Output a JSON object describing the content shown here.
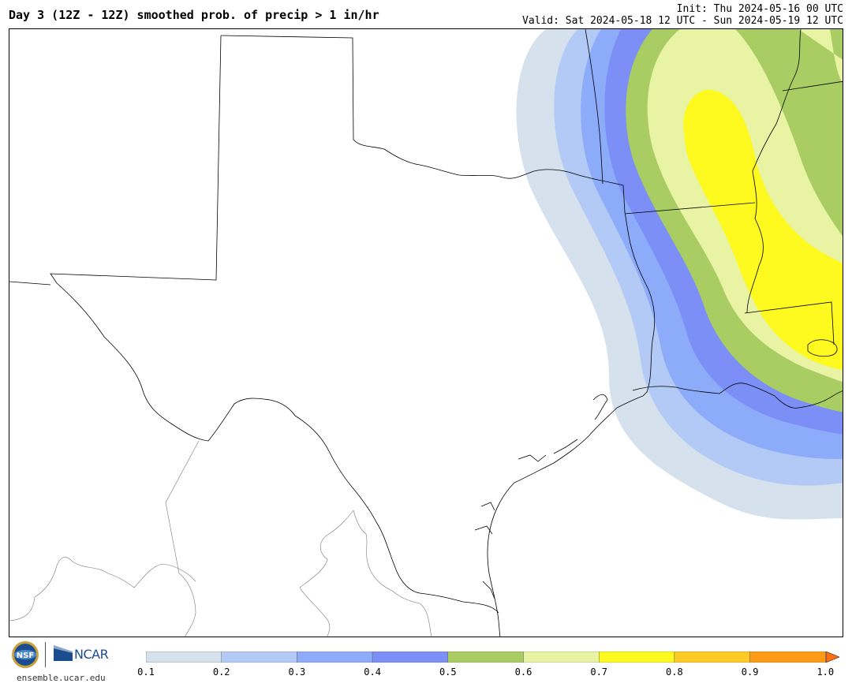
{
  "header": {
    "title": "Day 3 (12Z - 12Z) smoothed prob. of precip > 1 in/hr",
    "init": "Init: Thu 2024-05-16 00 UTC",
    "valid": "Valid: Sat 2024-05-18 12 UTC - Sun 2024-05-19 12 UTC"
  },
  "footer": {
    "logo_nsf": "NSF",
    "logo_ncar": "NCAR",
    "site": "ensemble.ucar.edu"
  },
  "colorbar": {
    "ticks": [
      "0.1",
      "0.2",
      "0.3",
      "0.4",
      "0.5",
      "0.6",
      "0.7",
      "0.8",
      "0.9",
      "1.0"
    ],
    "colors": [
      "#d5e1ec",
      "#b3c9f6",
      "#8cacfa",
      "#7b8ff7",
      "#a9cc63",
      "#e8f4a4",
      "#fef91e",
      "#feca26",
      "#fe9b16"
    ],
    "extend_color": "#fe6d10"
  },
  "contours": {
    "levels": [
      "0.1",
      "0.2",
      "0.3",
      "0.4",
      "0.5",
      "0.6",
      "0.7"
    ],
    "colors": [
      "#d5e1ec",
      "#b3c9f6",
      "#8cacfa",
      "#7b8ff7",
      "#a9cc63",
      "#e8f4a4",
      "#fef91e"
    ]
  }
}
